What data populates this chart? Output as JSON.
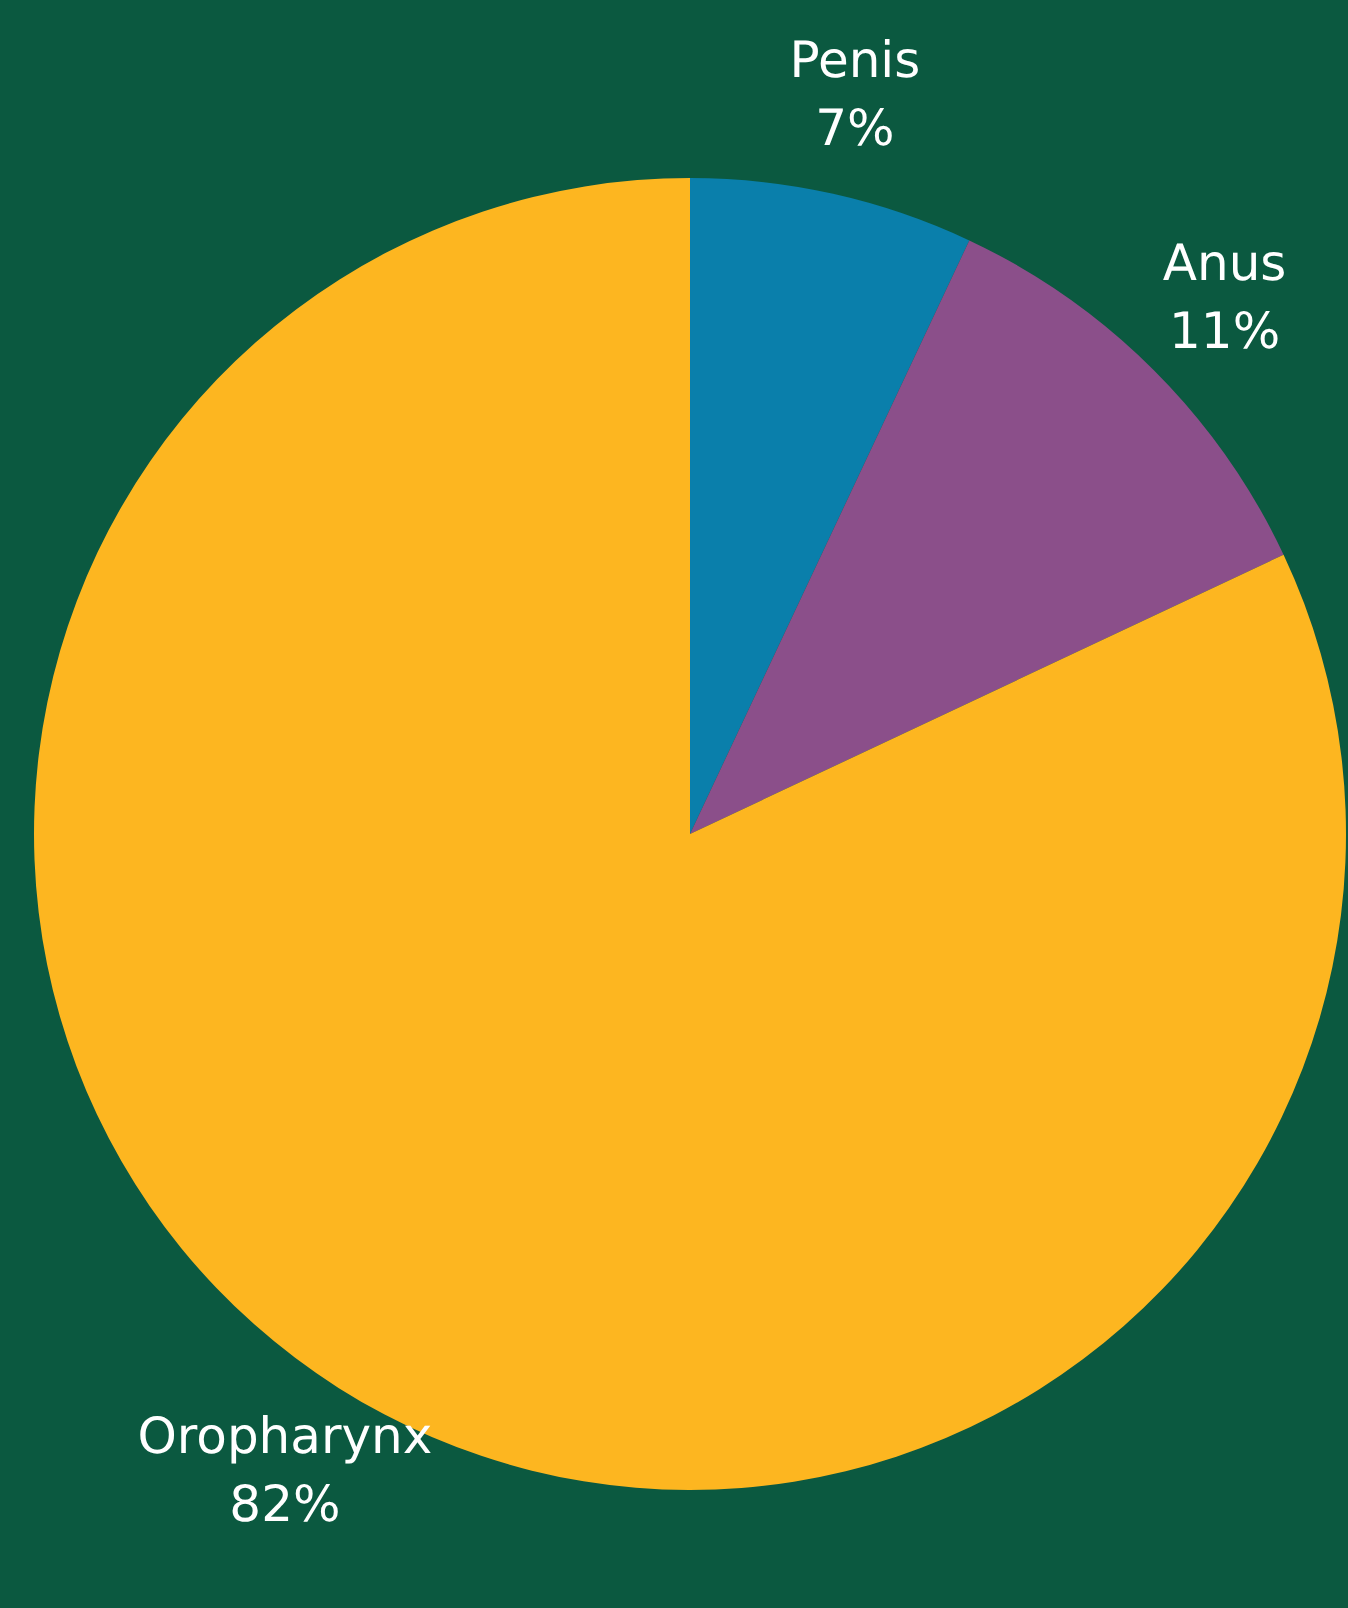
{
  "chart_data": {
    "type": "pie",
    "categories": [
      "Penis",
      "Anus",
      "Oropharynx"
    ],
    "values": [
      7,
      11,
      82
    ],
    "value_labels": [
      "7%",
      "11%",
      "82%"
    ],
    "colors": [
      "#0a7fab",
      "#8b4f8a",
      "#fdb620"
    ],
    "legend": false
  }
}
